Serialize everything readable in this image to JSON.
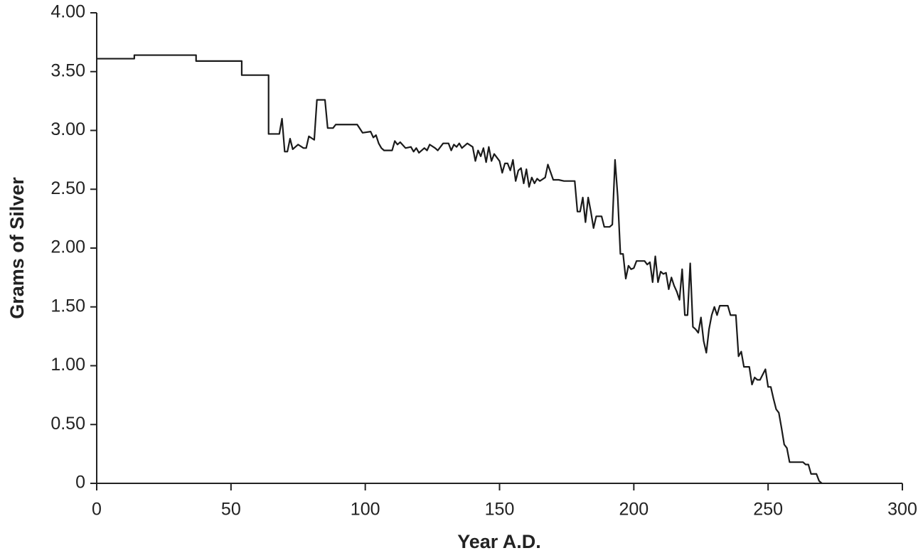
{
  "chart_data": {
    "type": "line",
    "x_label": "Year A.D.",
    "y_label": "Grams of Silver",
    "xlim": [
      0,
      300
    ],
    "xticks": [
      0,
      50,
      100,
      150,
      200,
      250,
      300
    ],
    "ylim": [
      0,
      4
    ],
    "yticks": [
      0,
      {
        "value": 0.5,
        "label": "0.50"
      },
      {
        "value": 1,
        "label": "1.00"
      },
      {
        "value": 1.5,
        "label": "1.50"
      },
      {
        "value": 2,
        "label": "2.00"
      },
      {
        "value": 2.5,
        "label": "2.50"
      },
      {
        "value": 3,
        "label": "3.00"
      },
      {
        "value": 3.5,
        "label": "3.50"
      },
      {
        "value": 4,
        "label": "4.00"
      }
    ],
    "grid": false,
    "series": [
      {
        "color": "#1a1a1a",
        "x": [
          0,
          14,
          14,
          37,
          37,
          54,
          54,
          64,
          64,
          68,
          69,
          70,
          71,
          72,
          73,
          75,
          77,
          78,
          79,
          81,
          82,
          85,
          86,
          88,
          89,
          97,
          99,
          102,
          103,
          104,
          105,
          106,
          107,
          110,
          111,
          112,
          113,
          115,
          117,
          118,
          119,
          120,
          122,
          123,
          124,
          126,
          127,
          129,
          131,
          132,
          133,
          134,
          135,
          136,
          138,
          140,
          141,
          142,
          143,
          144,
          145,
          146,
          147,
          148,
          150,
          151,
          152,
          153,
          154,
          155,
          156,
          157,
          158,
          159,
          160,
          161,
          162,
          163,
          164,
          165,
          167,
          168,
          170,
          172,
          174,
          178,
          179,
          180,
          181,
          182,
          183,
          184,
          185,
          186,
          188,
          189,
          191,
          192,
          193,
          194,
          195,
          196,
          197,
          198,
          199,
          200,
          201,
          204,
          205,
          206,
          207,
          208,
          209,
          210,
          211,
          212,
          213,
          214,
          215,
          216,
          217,
          218,
          219,
          220,
          221,
          222,
          223,
          224,
          225,
          226,
          227,
          228,
          229,
          230,
          231,
          232,
          235,
          236,
          238,
          239,
          240,
          241,
          243,
          244,
          245,
          246,
          247,
          249,
          250,
          251,
          252,
          253,
          254,
          255,
          256,
          257,
          258,
          263,
          264,
          265,
          266,
          268,
          269,
          270
        ],
        "values": [
          3.61,
          3.61,
          3.64,
          3.64,
          3.59,
          3.59,
          3.47,
          3.47,
          2.97,
          2.97,
          3.1,
          2.82,
          2.82,
          2.93,
          2.84,
          2.88,
          2.85,
          2.85,
          2.95,
          2.92,
          3.26,
          3.26,
          3.02,
          3.02,
          3.05,
          3.05,
          2.98,
          2.99,
          2.94,
          2.96,
          2.89,
          2.85,
          2.83,
          2.83,
          2.91,
          2.88,
          2.9,
          2.85,
          2.86,
          2.82,
          2.85,
          2.81,
          2.85,
          2.83,
          2.88,
          2.85,
          2.83,
          2.89,
          2.89,
          2.83,
          2.88,
          2.86,
          2.89,
          2.85,
          2.89,
          2.86,
          2.74,
          2.83,
          2.78,
          2.85,
          2.73,
          2.86,
          2.74,
          2.8,
          2.74,
          2.64,
          2.72,
          2.72,
          2.66,
          2.75,
          2.57,
          2.66,
          2.68,
          2.55,
          2.67,
          2.52,
          2.6,
          2.55,
          2.59,
          2.57,
          2.6,
          2.71,
          2.58,
          2.58,
          2.57,
          2.57,
          2.31,
          2.31,
          2.43,
          2.22,
          2.43,
          2.31,
          2.17,
          2.27,
          2.27,
          2.18,
          2.18,
          2.2,
          2.75,
          2.44,
          1.95,
          1.95,
          1.74,
          1.85,
          1.82,
          1.83,
          1.89,
          1.89,
          1.86,
          1.88,
          1.71,
          1.93,
          1.71,
          1.8,
          1.78,
          1.79,
          1.65,
          1.75,
          1.68,
          1.63,
          1.56,
          1.82,
          1.43,
          1.43,
          1.87,
          1.33,
          1.31,
          1.28,
          1.41,
          1.21,
          1.11,
          1.31,
          1.43,
          1.5,
          1.43,
          1.51,
          1.51,
          1.43,
          1.43,
          1.08,
          1.12,
          0.99,
          0.99,
          0.84,
          0.9,
          0.88,
          0.88,
          0.97,
          0.82,
          0.82,
          0.72,
          0.63,
          0.6,
          0.47,
          0.33,
          0.3,
          0.18,
          0.18,
          0.16,
          0.16,
          0.08,
          0.08,
          0.02,
          0
        ]
      }
    ]
  }
}
